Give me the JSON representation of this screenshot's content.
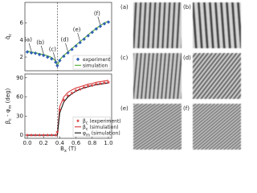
{
  "chart_data": [
    {
      "type": "line",
      "ylabel": [
        "q̃",
        "c"
      ],
      "x": [
        0,
        0.05,
        0.1,
        0.15,
        0.2,
        0.25,
        0.3,
        0.35,
        0.37,
        0.4,
        0.45,
        0.5,
        0.55,
        0.6,
        0.65,
        0.7,
        0.75,
        0.8,
        0.85,
        0.9,
        0.95,
        1.0
      ],
      "series": [
        {
          "name": [
            "experiment"
          ],
          "color": "#2f5fb3",
          "marker": "diamond",
          "values": [
            2.6,
            2.5,
            2.45,
            2.3,
            2.2,
            2.0,
            1.8,
            1.4,
            1.0,
            1.6,
            2.1,
            2.5,
            2.9,
            3.3,
            3.7,
            4.1,
            4.5,
            4.9,
            5.3,
            5.6,
            5.9,
            6.1
          ]
        },
        {
          "name": [
            "simulation"
          ],
          "color": "#4aa82a",
          "marker": "none",
          "values": [
            2.7,
            2.6,
            2.5,
            2.4,
            2.3,
            2.15,
            1.95,
            1.55,
            1.0,
            1.7,
            2.2,
            2.6,
            3.0,
            3.4,
            3.8,
            4.2,
            4.6,
            5.0,
            5.35,
            5.7,
            6.0,
            6.2
          ]
        }
      ],
      "annotations": [
        {
          "text": "(a)",
          "x": 0.05,
          "y": 2.5
        },
        {
          "text": "(b)",
          "x": 0.2,
          "y": 2.2
        },
        {
          "text": "(c)",
          "x": 0.35,
          "y": 1.4
        },
        {
          "text": "(d)",
          "x": 0.5,
          "y": 2.5
        },
        {
          "text": "(e)",
          "x": 0.65,
          "y": 3.7
        },
        {
          "text": "(f)",
          "x": 0.9,
          "y": 5.6
        }
      ],
      "vline": 0.37,
      "xlim": [
        -0.03,
        1.04
      ],
      "ylim": [
        0.4,
        8.4
      ],
      "yticks": [
        2,
        4,
        6
      ],
      "legend": "lower right"
    },
    {
      "type": "line",
      "ylabel": [
        "β",
        "c",
        " - φ",
        "m",
        " (deg)"
      ],
      "xlabel": [
        "B",
        "x",
        " (T)"
      ],
      "x": [
        0,
        0.05,
        0.1,
        0.15,
        0.2,
        0.25,
        0.3,
        0.35,
        0.37,
        0.4,
        0.45,
        0.5,
        0.55,
        0.6,
        0.65,
        0.7,
        0.75,
        0.8,
        0.85,
        0.9,
        0.95,
        1.0
      ],
      "series": [
        {
          "name": [
            "β",
            "c",
            " (experiment)"
          ],
          "color": "#d9393c",
          "marker": "star",
          "values": [
            0,
            0,
            0,
            0,
            0,
            0,
            0,
            0,
            5,
            40,
            55,
            62,
            66,
            70,
            72,
            75,
            77,
            78,
            80,
            81,
            82,
            83
          ]
        },
        {
          "name": [
            "β",
            "c",
            " (simulation)"
          ],
          "color": "#d9393c",
          "marker": "none",
          "values": [
            0,
            0,
            0,
            0,
            0,
            0,
            0,
            0,
            0,
            45,
            60,
            67,
            71,
            74,
            76,
            78,
            80,
            81,
            83,
            84,
            85,
            86
          ]
        },
        {
          "name": [
            "φ",
            "m",
            " (simulation)"
          ],
          "color": "#111111",
          "marker": "none",
          "values": [
            0,
            0,
            0,
            0,
            0,
            0,
            0,
            0,
            0,
            35,
            52,
            60,
            65,
            69,
            72,
            74,
            76,
            78,
            79,
            80,
            81,
            82
          ]
        }
      ],
      "vline": 0.37,
      "xlim": [
        -0.03,
        1.04
      ],
      "ylim": [
        -5,
        96
      ],
      "yticks": [
        0,
        30,
        60,
        90
      ],
      "xticks": [
        {
          "value": 0,
          "label": "0.0"
        },
        {
          "value": 0.2,
          "label": "0.2"
        },
        {
          "value": 0.4,
          "label": "0.4"
        },
        {
          "value": 0.6,
          "label": "0.6"
        },
        {
          "value": 0.8,
          "label": "0.8"
        },
        {
          "value": 1.0,
          "label": "1.0"
        }
      ],
      "legend": "lower right"
    }
  ],
  "panels": [
    {
      "label": "(a)"
    },
    {
      "label": "(b)"
    },
    {
      "label": "(c)"
    },
    {
      "label": "(d)"
    },
    {
      "label": "(e)"
    },
    {
      "label": "(f)"
    }
  ]
}
